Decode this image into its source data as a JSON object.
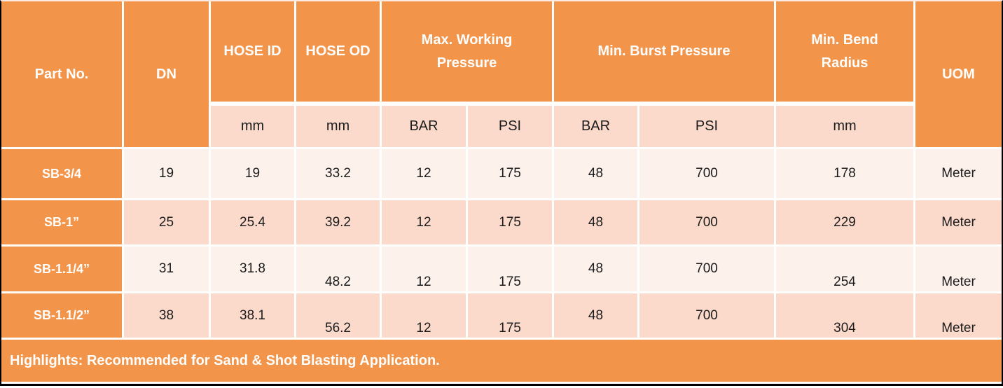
{
  "colors": {
    "orange": "#F2944A",
    "pink_light": "#FDF1EB",
    "pink_dark": "#FBDACC",
    "grid_line": "#FFFFFF",
    "border_black": "#000000",
    "text_dark": "#1C1C1C",
    "text_light": "#FFFFFF"
  },
  "header": {
    "part_no": "Part No.",
    "dn": "DN",
    "hose_id": "HOSE ID",
    "hose_od": "HOSE OD",
    "max_working_pressure": "Max. Working Pressure",
    "min_burst_pressure": "Min. Burst Pressure",
    "min_bend_radius": "Min. Bend Radius",
    "uom": "UOM"
  },
  "subheader": {
    "hose_id_unit": "mm",
    "hose_od_unit": "mm",
    "mwp_bar": "BAR",
    "mwp_psi": "PSI",
    "mbp_bar": "BAR",
    "mbp_psi": "PSI",
    "bend_unit": "mm"
  },
  "rows": [
    {
      "part_no": "SB-3/4",
      "dn": "19",
      "hose_id": "19",
      "hose_od": "33.2",
      "mwp_bar": "12",
      "mwp_psi": "175",
      "mbp_bar": "48",
      "mbp_psi": "700",
      "bend": "178",
      "uom": "Meter"
    },
    {
      "part_no": "SB-1”",
      "dn": "25",
      "hose_id": "25.4",
      "hose_od": "39.2",
      "mwp_bar": "12",
      "mwp_psi": "175",
      "mbp_bar": "48",
      "mbp_psi": "700",
      "bend": "229",
      "uom": "Meter"
    },
    {
      "part_no": "SB-1.1/4”",
      "dn": "31",
      "hose_id": "31.8",
      "hose_od": "48.2",
      "mwp_bar": "12",
      "mwp_psi": "175",
      "mbp_bar": "48",
      "mbp_psi": "700",
      "bend": "254",
      "uom": "Meter"
    },
    {
      "part_no": "SB-1.1/2”",
      "dn": "38",
      "hose_id": "38.1",
      "hose_od": "56.2",
      "mwp_bar": "12",
      "mwp_psi": "175",
      "mbp_bar": "48",
      "mbp_psi": "700",
      "bend": "304",
      "uom": "Meter"
    }
  ],
  "footer": {
    "highlights": "Highlights: Recommended for Sand & Shot Blasting Application."
  }
}
